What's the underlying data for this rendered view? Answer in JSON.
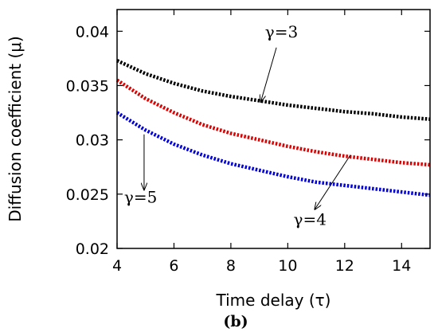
{
  "chart_data": {
    "type": "line",
    "title": "",
    "panel_label": "(b)",
    "xlabel": "Time delay (τ)",
    "ylabel": "Diffusion coefficient (μ)",
    "xlim": [
      4,
      15
    ],
    "ylim": [
      0.02,
      0.042
    ],
    "xticks": [
      4,
      6,
      8,
      10,
      12,
      14
    ],
    "xtick_labels": [
      "4",
      "6",
      "8",
      "10",
      "12",
      "14"
    ],
    "yticks": [
      0.02,
      0.025,
      0.03,
      0.035,
      0.04
    ],
    "ytick_labels": [
      "0.02",
      "0.025",
      "0.03",
      "0.035",
      "0.04"
    ],
    "grid": false,
    "series": [
      {
        "name": "γ=3",
        "color": "#000000",
        "style": "dotted",
        "x": [
          4,
          5,
          6,
          7,
          8,
          9,
          10,
          11,
          12,
          13,
          14,
          15
        ],
        "y": [
          0.0373,
          0.0361,
          0.0352,
          0.0345,
          0.034,
          0.0336,
          0.0332,
          0.0329,
          0.0326,
          0.0324,
          0.0321,
          0.0319
        ]
      },
      {
        "name": "γ=4",
        "color": "#dd0000",
        "style": "dotted",
        "x": [
          4,
          5,
          6,
          7,
          8,
          9,
          10,
          11,
          12,
          13,
          14,
          15
        ],
        "y": [
          0.0355,
          0.0338,
          0.0325,
          0.0314,
          0.0306,
          0.03,
          0.0294,
          0.0289,
          0.0285,
          0.0282,
          0.0279,
          0.0277
        ]
      },
      {
        "name": "γ=5",
        "color": "#0000dd",
        "style": "dotted",
        "x": [
          4,
          5,
          6,
          7,
          8,
          9,
          10,
          11,
          12,
          13,
          14,
          15
        ],
        "y": [
          0.0325,
          0.0309,
          0.0296,
          0.0286,
          0.0278,
          0.0272,
          0.0266,
          0.0261,
          0.0258,
          0.0255,
          0.0252,
          0.0249
        ]
      }
    ],
    "annotations": [
      {
        "text": "γ=3",
        "text_x": 9.2,
        "text_y": 0.03945,
        "arrow_from": [
          9.6,
          0.0385
        ],
        "arrow_to": [
          9.05,
          0.0335
        ]
      },
      {
        "text": "γ=4",
        "text_x": 10.2,
        "text_y": 0.02215,
        "arrow_from": [
          12.2,
          0.0286
        ],
        "arrow_to": [
          10.95,
          0.0236
        ]
      },
      {
        "text": "γ=5",
        "text_x": 4.25,
        "text_y": 0.0242,
        "arrow_from": [
          4.95,
          0.0305
        ],
        "arrow_to": [
          4.95,
          0.0254
        ]
      }
    ]
  }
}
